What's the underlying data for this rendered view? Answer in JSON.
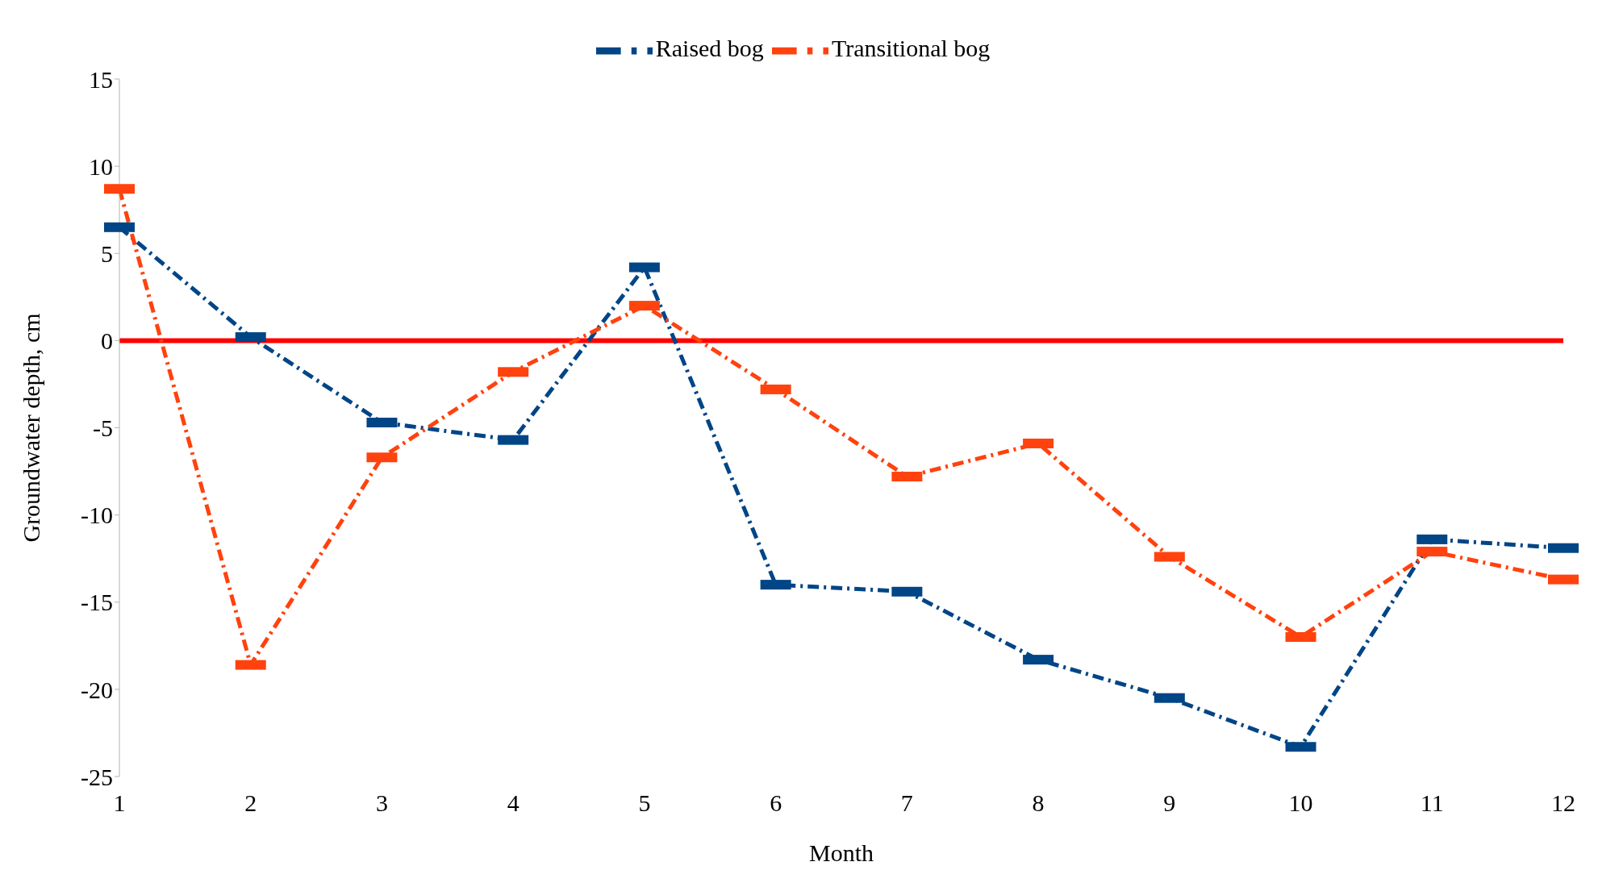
{
  "chart_data": {
    "type": "line",
    "xlabel": "Month",
    "ylabel": "Groundwater depth, cm",
    "x": [
      1,
      2,
      3,
      4,
      5,
      6,
      7,
      8,
      9,
      10,
      11,
      12
    ],
    "xlim": [
      1,
      12
    ],
    "xticks": [
      1,
      2,
      3,
      4,
      5,
      6,
      7,
      8,
      9,
      10,
      11,
      12
    ],
    "ylim": [
      -25,
      15
    ],
    "yticks": [
      -25,
      -20,
      -15,
      -10,
      -5,
      0,
      5,
      10,
      15
    ],
    "series": [
      {
        "name": "Raised bog",
        "color": "#004586",
        "values": [
          6.5,
          0.2,
          -4.7,
          -5.7,
          4.2,
          -14.0,
          -14.4,
          -18.3,
          -20.5,
          -23.3,
          -11.4,
          -11.9
        ]
      },
      {
        "name": "Transitional bog",
        "color": "#ff420e",
        "values": [
          8.7,
          -18.6,
          -6.7,
          -1.8,
          2.0,
          -2.8,
          -7.8,
          -5.9,
          -12.4,
          -17.0,
          -12.1,
          -13.7
        ]
      }
    ],
    "ref_lines": [
      {
        "axis": "y",
        "value": 0,
        "label": null,
        "color": "#ff0000"
      }
    ],
    "grid": false,
    "legend": "top",
    "marker": "square",
    "line_style": "dashed"
  }
}
